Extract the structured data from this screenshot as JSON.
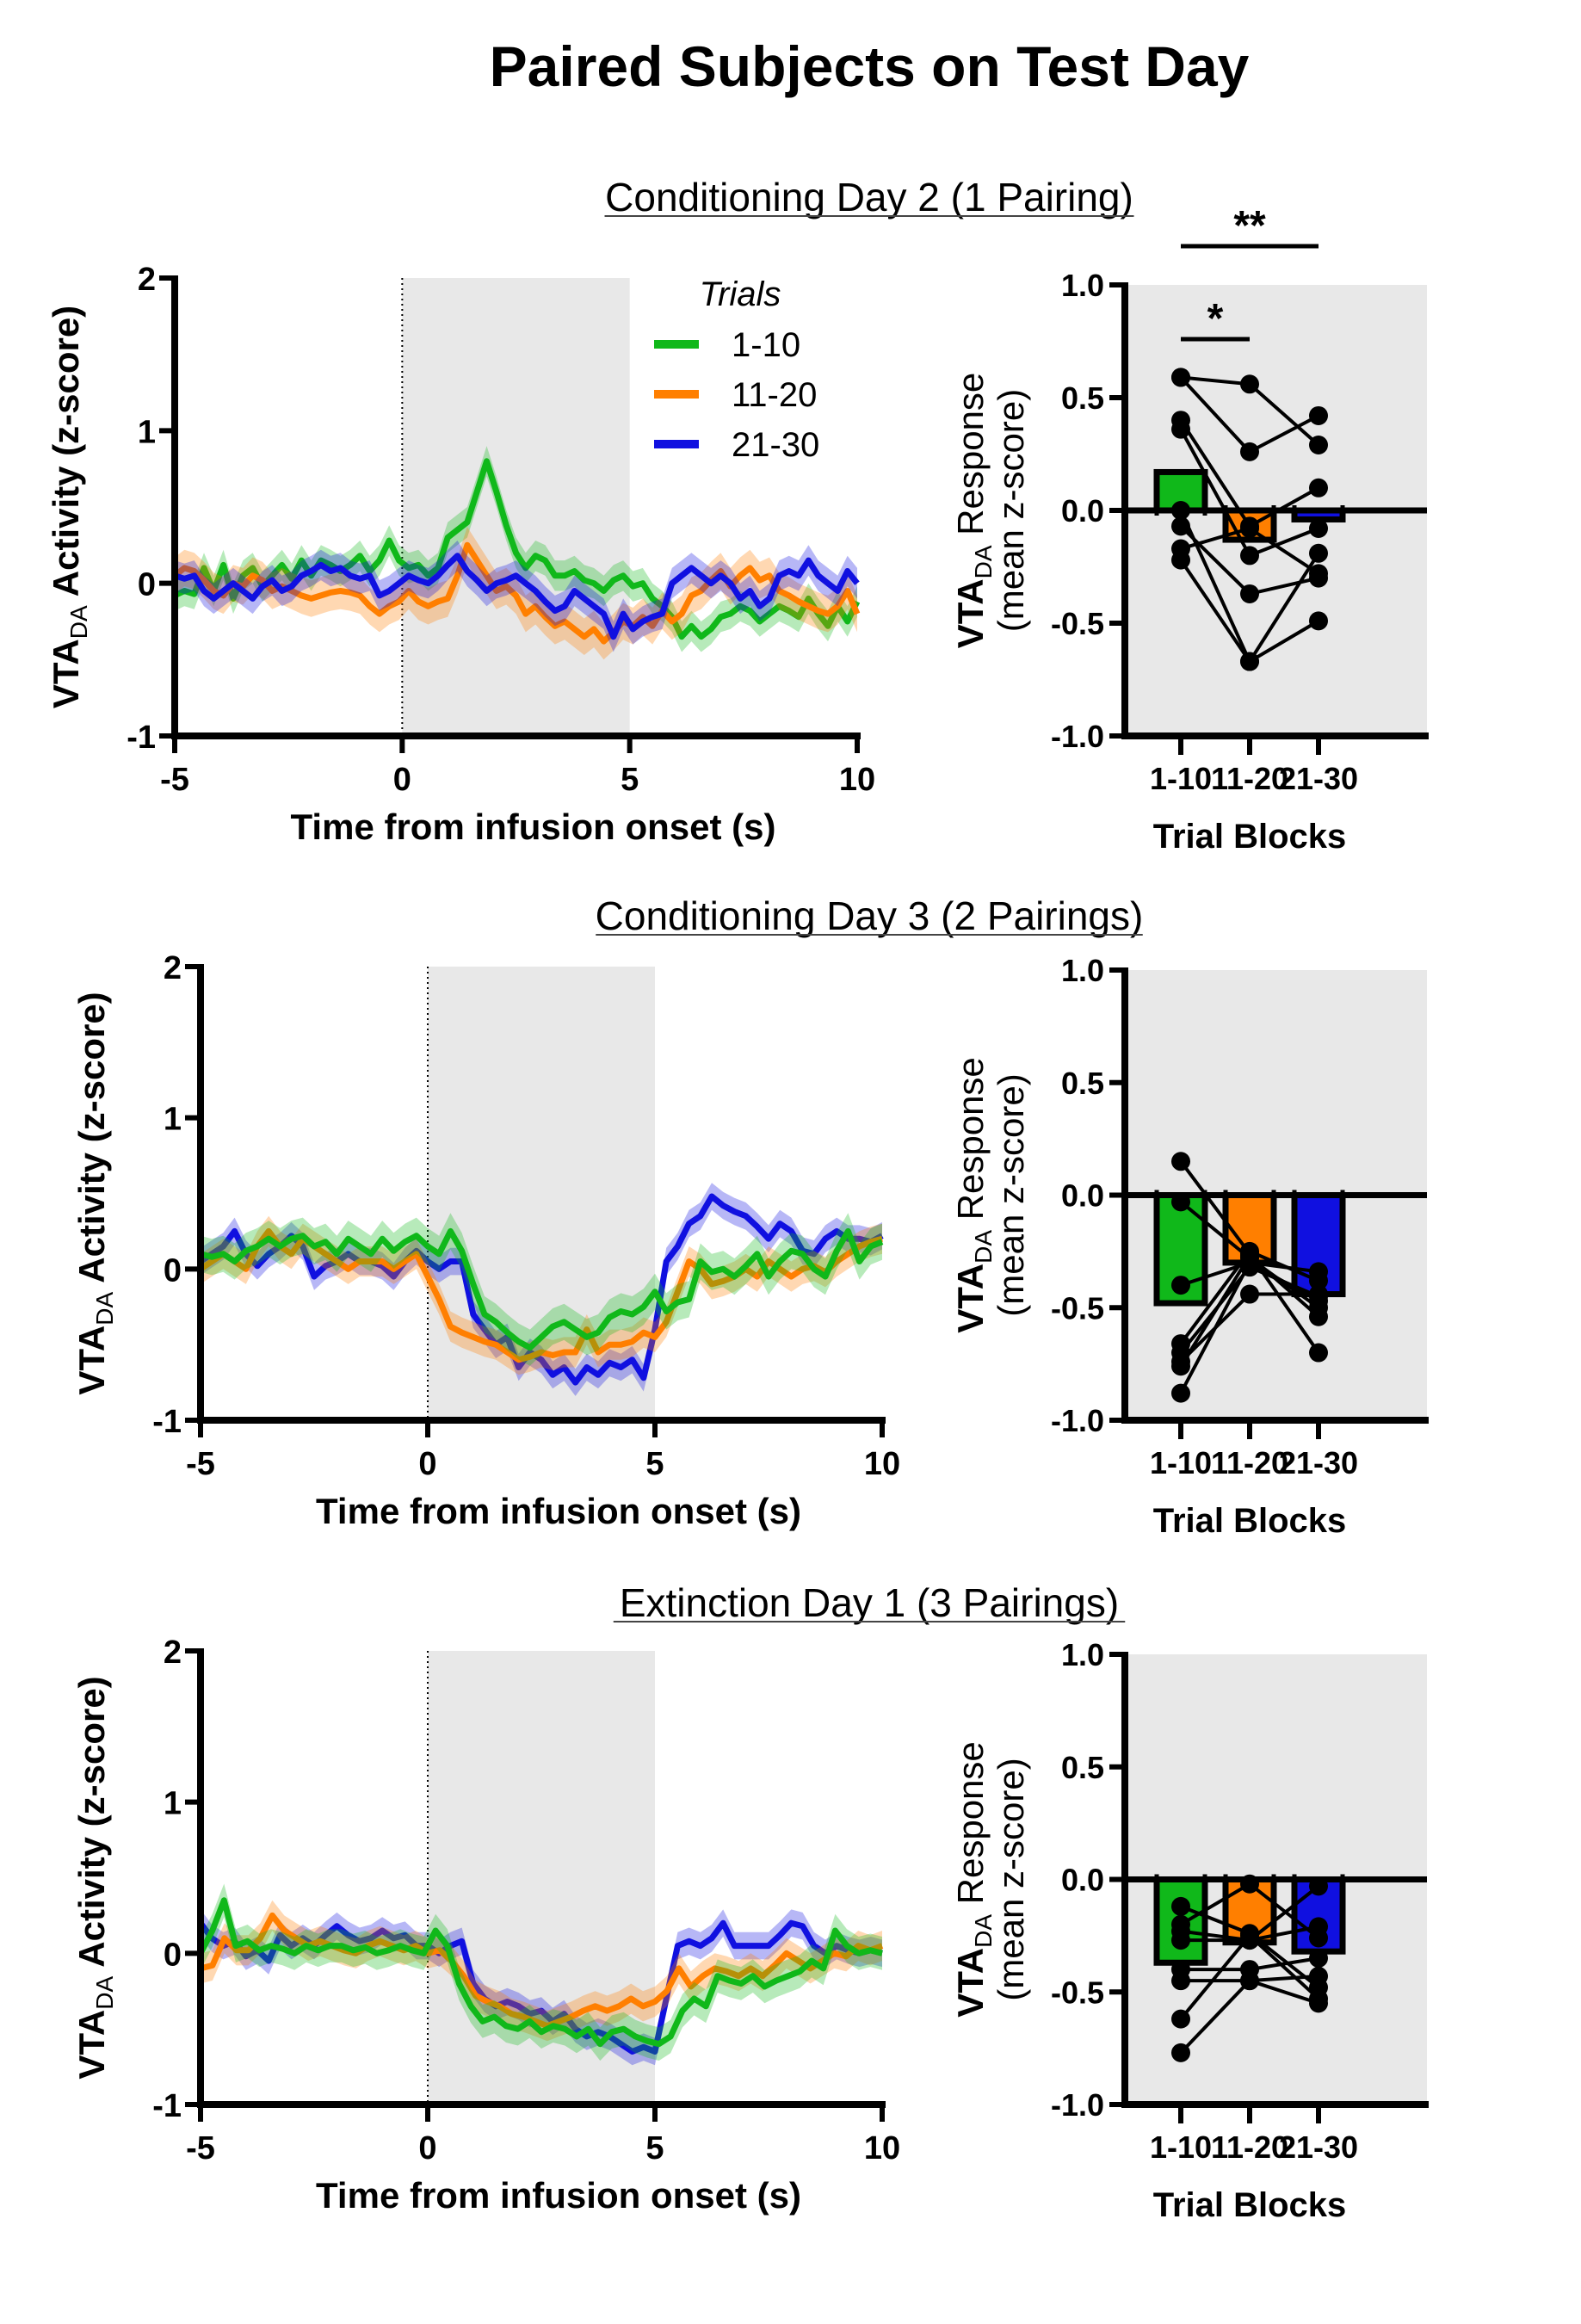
{
  "figure": {
    "title": "Paired Subjects on Test Day"
  },
  "legend": {
    "title": "Trials",
    "entries": [
      {
        "label": "1-10",
        "color": "#10B81A"
      },
      {
        "label": "11-20",
        "color": "#FF7F00"
      },
      {
        "label": "21-30",
        "color": "#1010E0"
      }
    ]
  },
  "chart_data": [
    {
      "type": "line",
      "panel": "Conditioning Day 2 (1 Pairing)",
      "section_title": "Conditioning Day 2 (1 Pairing)",
      "xlabel": "Time from infusion onset (s)",
      "ylabel": "VTA_DA Activity (z-score)",
      "ylabel_main": "VTA",
      "ylabel_sub": "DA",
      "ylabel_rest": " Activity (z-score)",
      "xlim": [
        -5,
        10
      ],
      "ylim": [
        -1,
        2
      ],
      "xticks": [
        "-5",
        "0",
        "5",
        "10"
      ],
      "xtick_values": [
        -5,
        0,
        5,
        10
      ],
      "yticks": [
        "-1",
        "0",
        "1",
        "2"
      ],
      "ytick_values": [
        -1,
        0,
        1,
        2
      ],
      "shaded_interval": [
        0,
        5
      ],
      "event_line_x": 0,
      "legend_shown": true,
      "legend_position": "top-right",
      "x_step": 0.25,
      "series": [
        {
          "name": "1-10",
          "color": "#10B81A",
          "sem": 0.1,
          "values": [
            -0.08,
            -0.05,
            -0.07,
            0.1,
            -0.05,
            0.12,
            -0.1,
            0.05,
            0.1,
            -0.02,
            0.05,
            0.12,
            0.03,
            0.15,
            0.05,
            0.15,
            0.12,
            0.08,
            0.12,
            0.18,
            0.08,
            0.15,
            0.28,
            0.15,
            0.1,
            0.12,
            0.05,
            0.1,
            0.3,
            0.35,
            0.4,
            0.6,
            0.8,
            0.6,
            0.38,
            0.2,
            0.1,
            0.18,
            0.15,
            0.05,
            0.05,
            0.08,
            0.02,
            0.0,
            -0.05,
            0.02,
            0.05,
            -0.02,
            0.0,
            -0.1,
            -0.15,
            -0.22,
            -0.35,
            -0.28,
            -0.35,
            -0.3,
            -0.22,
            -0.2,
            -0.15,
            -0.18,
            -0.25,
            -0.2,
            -0.15,
            -0.18,
            -0.22,
            -0.1,
            -0.2,
            -0.28,
            -0.15,
            -0.25,
            -0.12
          ]
        },
        {
          "name": "11-20",
          "color": "#FF7F00",
          "sem": 0.12,
          "values": [
            0.05,
            0.1,
            0.08,
            0.02,
            -0.05,
            -0.08,
            0.0,
            -0.02,
            0.05,
            0.02,
            -0.05,
            -0.02,
            -0.05,
            -0.08,
            -0.1,
            -0.08,
            -0.06,
            -0.05,
            -0.06,
            -0.08,
            -0.15,
            -0.2,
            -0.15,
            -0.12,
            -0.05,
            -0.12,
            -0.15,
            -0.12,
            -0.1,
            0.05,
            0.25,
            0.15,
            0.05,
            -0.05,
            -0.02,
            -0.08,
            -0.2,
            -0.15,
            -0.22,
            -0.28,
            -0.25,
            -0.3,
            -0.35,
            -0.3,
            -0.38,
            -0.32,
            -0.25,
            -0.28,
            -0.22,
            -0.28,
            -0.18,
            -0.25,
            -0.2,
            -0.08,
            -0.05,
            0.02,
            0.08,
            -0.02,
            0.05,
            0.1,
            0.02,
            0.05,
            -0.05,
            -0.08,
            -0.12,
            -0.15,
            -0.18,
            -0.2,
            -0.15,
            -0.05,
            -0.2
          ]
        },
        {
          "name": "21-30",
          "color": "#1010E0",
          "sem": 0.1,
          "values": [
            0.05,
            0.03,
            0.05,
            -0.05,
            -0.1,
            -0.05,
            0.0,
            -0.05,
            -0.1,
            -0.02,
            0.02,
            -0.05,
            -0.02,
            0.05,
            0.08,
            0.12,
            0.08,
            0.1,
            0.05,
            0.03,
            0.05,
            -0.08,
            -0.05,
            0.0,
            0.05,
            0.02,
            0.0,
            0.05,
            0.12,
            0.18,
            0.08,
            0.02,
            -0.05,
            0.0,
            0.02,
            0.05,
            0.0,
            -0.05,
            -0.12,
            -0.18,
            -0.15,
            -0.05,
            -0.1,
            -0.15,
            -0.2,
            -0.35,
            -0.2,
            -0.3,
            -0.25,
            -0.22,
            -0.2,
            0.0,
            0.05,
            0.1,
            0.05,
            0.0,
            0.05,
            0.0,
            -0.1,
            -0.05,
            -0.15,
            -0.1,
            0.05,
            0.08,
            0.05,
            0.15,
            0.05,
            0.0,
            -0.05,
            0.08,
            0.0
          ]
        }
      ]
    },
    {
      "type": "bar",
      "panel": "Conditioning Day 2 (1 Pairing) block summary",
      "xlabel": "Trial Blocks",
      "ylabel": "VTA_DA Response (mean z-score)",
      "ylabel_main": "VTA",
      "ylabel_sub": "DA",
      "ylabel_rest": " Response",
      "ylabel_line2": "(mean z-score)",
      "categories": [
        "1-10",
        "11-20",
        "21-30"
      ],
      "colors": [
        "#10B81A",
        "#FF7F00",
        "#1010E0"
      ],
      "values": [
        0.17,
        -0.13,
        -0.04
      ],
      "ylim": [
        -1.0,
        1.0
      ],
      "yticks": [
        "-1.0",
        "-0.5",
        "0.0",
        "0.5",
        "1.0"
      ],
      "ytick_values": [
        -1.0,
        -0.5,
        0.0,
        0.5,
        1.0
      ],
      "subjects": [
        [
          0.59,
          0.56,
          0.29
        ],
        [
          0.59,
          0.26,
          0.42
        ],
        [
          0.4,
          -0.07,
          0.1
        ],
        [
          0.36,
          -0.2,
          -0.08
        ],
        [
          0.0,
          -0.67,
          -0.19
        ],
        [
          -0.07,
          -0.37,
          -0.3
        ],
        [
          -0.17,
          -0.08,
          -0.28
        ],
        [
          -0.22,
          -0.67,
          -0.49
        ]
      ],
      "significance": [
        {
          "from": "1-10",
          "to": "11-20",
          "label": "*"
        },
        {
          "from": "1-10",
          "to": "21-30",
          "label": "**"
        }
      ]
    },
    {
      "type": "line",
      "panel": "Conditioning Day 3 (2 Pairings)",
      "section_title": "Conditioning Day 3 (2 Pairings)",
      "xlabel": "Time from infusion onset (s)",
      "ylabel": "VTA_DA Activity (z-score)",
      "ylabel_main": "VTA",
      "ylabel_sub": "DA",
      "ylabel_rest": " Activity (z-score)",
      "xlim": [
        -5,
        10
      ],
      "ylim": [
        -1,
        2
      ],
      "xticks": [
        "-5",
        "0",
        "5",
        "10"
      ],
      "xtick_values": [
        -5,
        0,
        5,
        10
      ],
      "yticks": [
        "-1",
        "0",
        "1",
        "2"
      ],
      "ytick_values": [
        -1,
        0,
        1,
        2
      ],
      "shaded_interval": [
        0,
        5
      ],
      "event_line_x": 0,
      "legend_shown": false,
      "x_step": 0.25,
      "series": [
        {
          "name": "21-30",
          "color": "#1010E0",
          "sem": 0.09,
          "values": [
            0.05,
            0.1,
            0.15,
            0.25,
            0.1,
            0.02,
            0.1,
            0.15,
            0.22,
            0.15,
            -0.05,
            0.02,
            0.05,
            0.1,
            0.05,
            0.05,
            0.02,
            -0.05,
            0.05,
            0.12,
            0.05,
            0.0,
            0.05,
            0.05,
            -0.3,
            -0.4,
            -0.5,
            -0.45,
            -0.65,
            -0.55,
            -0.6,
            -0.7,
            -0.65,
            -0.75,
            -0.65,
            -0.7,
            -0.62,
            -0.65,
            -0.6,
            -0.72,
            -0.4,
            0.05,
            0.15,
            0.3,
            0.35,
            0.48,
            0.42,
            0.38,
            0.35,
            0.28,
            0.2,
            0.3,
            0.25,
            0.12,
            0.1,
            0.2,
            0.25,
            0.2,
            0.2,
            0.18,
            0.22
          ]
        },
        {
          "name": "11-20",
          "color": "#FF7F00",
          "sem": 0.1,
          "values": [
            0.0,
            0.05,
            0.1,
            0.05,
            0.0,
            0.15,
            0.25,
            0.15,
            0.1,
            0.2,
            0.15,
            0.1,
            0.05,
            0.0,
            0.05,
            0.05,
            0.05,
            0.0,
            0.05,
            0.1,
            -0.05,
            -0.2,
            -0.38,
            -0.42,
            -0.45,
            -0.48,
            -0.5,
            -0.55,
            -0.6,
            -0.58,
            -0.55,
            -0.57,
            -0.55,
            -0.55,
            -0.4,
            -0.55,
            -0.5,
            -0.5,
            -0.48,
            -0.42,
            -0.45,
            -0.35,
            -0.15,
            0.05,
            0.0,
            -0.1,
            -0.08,
            -0.05,
            0.0,
            -0.05,
            0.05,
            0.0,
            -0.05,
            0.0,
            0.02,
            -0.02,
            0.05,
            0.1,
            0.15,
            0.18,
            0.2
          ]
        },
        {
          "name": "1-10",
          "color": "#10B81A",
          "sem": 0.12,
          "values": [
            0.1,
            0.08,
            0.1,
            0.05,
            0.12,
            0.15,
            0.2,
            0.15,
            0.2,
            0.22,
            0.15,
            0.18,
            0.1,
            0.2,
            0.15,
            0.1,
            0.2,
            0.12,
            0.18,
            0.22,
            0.15,
            0.1,
            0.25,
            0.12,
            -0.1,
            -0.3,
            -0.35,
            -0.42,
            -0.48,
            -0.52,
            -0.45,
            -0.38,
            -0.35,
            -0.4,
            -0.45,
            -0.42,
            -0.32,
            -0.28,
            -0.3,
            -0.25,
            -0.15,
            -0.28,
            -0.22,
            -0.2,
            0.05,
            -0.02,
            0.0,
            -0.05,
            0.02,
            0.1,
            -0.05,
            0.05,
            0.12,
            0.1,
            0.0,
            -0.05,
            0.12,
            0.25,
            0.05,
            0.15,
            0.18
          ]
        }
      ]
    },
    {
      "type": "bar",
      "panel": "Conditioning Day 3 (2 Pairings) block summary",
      "xlabel": "Trial Blocks",
      "ylabel": "VTA_DA Response (mean z-score)",
      "ylabel_main": "VTA",
      "ylabel_sub": "DA",
      "ylabel_rest": " Response",
      "ylabel_line2": "(mean z-score)",
      "categories": [
        "1-10",
        "11-20",
        "21-30"
      ],
      "colors": [
        "#10B81A",
        "#FF7F00",
        "#1010E0"
      ],
      "values": [
        -0.48,
        -0.3,
        -0.44
      ],
      "ylim": [
        -1.0,
        1.0
      ],
      "yticks": [
        "-1.0",
        "-0.5",
        "0.0",
        "0.5",
        "1.0"
      ],
      "ytick_values": [
        -1.0,
        -0.5,
        0.0,
        0.5,
        1.0
      ],
      "subjects": [
        [
          0.15,
          -0.26,
          -0.7
        ],
        [
          -0.03,
          -0.28,
          -0.5
        ],
        [
          -0.4,
          -0.3,
          -0.34
        ],
        [
          -0.66,
          -0.25,
          -0.38
        ],
        [
          -0.7,
          -0.32,
          -0.45
        ],
        [
          -0.74,
          -0.44,
          -0.44
        ],
        [
          -0.76,
          -0.27,
          -0.54
        ],
        [
          -0.88,
          -0.3,
          -0.47
        ]
      ],
      "significance": []
    },
    {
      "type": "line",
      "panel": "Extinction Day 1 (3 Pairings)",
      "section_title": "Extinction Day 1 (3 Pairings)",
      "xlabel": "Time from infusion onset (s)",
      "ylabel": "VTA_DA Activity (z-score)",
      "ylabel_main": "VTA",
      "ylabel_sub": "DA",
      "ylabel_rest": " Activity (z-score)",
      "xlim": [
        -5,
        10
      ],
      "ylim": [
        -1,
        2
      ],
      "xticks": [
        "-5",
        "0",
        "5",
        "10"
      ],
      "xtick_values": [
        -5,
        0,
        5,
        10
      ],
      "yticks": [
        "-1",
        "0",
        "1",
        "2"
      ],
      "ytick_values": [
        -1,
        0,
        1,
        2
      ],
      "shaded_interval": [
        0,
        5
      ],
      "event_line_x": 0,
      "legend_shown": false,
      "x_step": 0.25,
      "series": [
        {
          "name": "21-30",
          "color": "#1010E0",
          "sem": 0.09,
          "values": [
            0.2,
            0.1,
            0.05,
            0.08,
            -0.02,
            0.02,
            -0.05,
            0.12,
            0.05,
            0.1,
            0.05,
            0.12,
            0.18,
            0.12,
            0.08,
            0.1,
            0.15,
            0.1,
            0.12,
            0.05,
            0.05,
            0.0,
            0.05,
            0.08,
            -0.2,
            -0.3,
            -0.35,
            -0.32,
            -0.35,
            -0.4,
            -0.38,
            -0.45,
            -0.4,
            -0.5,
            -0.55,
            -0.52,
            -0.55,
            -0.6,
            -0.65,
            -0.62,
            -0.65,
            -0.3,
            0.05,
            0.08,
            0.05,
            0.1,
            0.2,
            0.05,
            0.05,
            0.05,
            0.05,
            0.12,
            0.2,
            0.18,
            0.05,
            0.0,
            0.05,
            0.02,
            0.0,
            0.02,
            0.0
          ]
        },
        {
          "name": "11-20",
          "color": "#FF7F00",
          "sem": 0.1,
          "values": [
            -0.1,
            -0.08,
            0.1,
            0.02,
            0.02,
            0.1,
            0.25,
            0.15,
            0.1,
            0.05,
            0.08,
            0.05,
            0.02,
            0.0,
            0.05,
            0.08,
            0.05,
            0.02,
            0.05,
            0.0,
            0.02,
            -0.05,
            -0.15,
            -0.28,
            -0.32,
            -0.35,
            -0.4,
            -0.42,
            -0.45,
            -0.48,
            -0.45,
            -0.42,
            -0.38,
            -0.35,
            -0.38,
            -0.35,
            -0.3,
            -0.35,
            -0.32,
            -0.25,
            -0.1,
            -0.22,
            -0.15,
            -0.1,
            -0.12,
            -0.15,
            -0.1,
            -0.15,
            -0.08,
            0.0,
            -0.05,
            -0.1,
            -0.05,
            0.0,
            -0.02,
            0.05,
            0.02,
            0.05
          ]
        },
        {
          "name": "1-10",
          "color": "#10B81A",
          "sem": 0.11,
          "values": [
            0.0,
            0.15,
            0.35,
            0.05,
            0.08,
            0.02,
            0.05,
            0.03,
            0.0,
            0.05,
            0.02,
            0.05,
            0.05,
            0.02,
            0.04,
            0.0,
            0.02,
            0.05,
            0.02,
            0.0,
            0.15,
            0.05,
            -0.2,
            -0.35,
            -0.45,
            -0.42,
            -0.48,
            -0.5,
            -0.45,
            -0.52,
            -0.48,
            -0.5,
            -0.55,
            -0.5,
            -0.6,
            -0.52,
            -0.5,
            -0.55,
            -0.58,
            -0.6,
            -0.55,
            -0.38,
            -0.3,
            -0.35,
            -0.15,
            -0.18,
            -0.2,
            -0.15,
            -0.22,
            -0.18,
            -0.15,
            -0.12,
            -0.05,
            -0.1,
            0.15,
            0.05,
            0.0,
            0.02,
            0.0
          ]
        }
      ]
    },
    {
      "type": "bar",
      "panel": "Extinction Day 1 (3 Pairings) block summary",
      "xlabel": "Trial Blocks",
      "ylabel": "VTA_DA Response (mean z-score)",
      "ylabel_main": "VTA",
      "ylabel_sub": "DA",
      "ylabel_rest": " Response",
      "ylabel_line2": "(mean z-score)",
      "categories": [
        "1-10",
        "11-20",
        "21-30"
      ],
      "colors": [
        "#10B81A",
        "#FF7F00",
        "#1010E0"
      ],
      "values": [
        -0.37,
        -0.28,
        -0.32
      ],
      "ylim": [
        -1.0,
        1.0
      ],
      "yticks": [
        "-1.0",
        "-0.5",
        "0.0",
        "0.5",
        "1.0"
      ],
      "ytick_values": [
        -1.0,
        -0.5,
        0.0,
        0.5,
        1.0
      ],
      "subjects": [
        [
          -0.12,
          -0.24,
          -0.48
        ],
        [
          -0.2,
          -0.02,
          -0.26
        ],
        [
          -0.23,
          -0.27,
          -0.03
        ],
        [
          -0.27,
          -0.27,
          -0.21
        ],
        [
          -0.4,
          -0.4,
          -0.35
        ],
        [
          -0.45,
          -0.45,
          -0.43
        ],
        [
          -0.62,
          -0.25,
          -0.53
        ],
        [
          -0.77,
          -0.45,
          -0.55
        ]
      ],
      "significance": []
    }
  ]
}
